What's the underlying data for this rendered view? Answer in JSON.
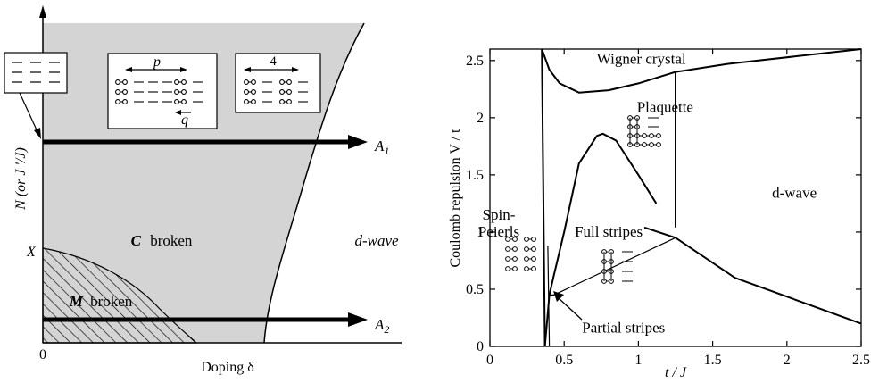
{
  "left_panel": {
    "xlabel": "Doping δ",
    "ylabel": "N (or J '/J)",
    "x_origin_label": "0",
    "x_marker_label": "X",
    "region_c_label": "broken",
    "region_c_symbol": "C",
    "region_m_label": "broken",
    "region_m_symbol": "M",
    "region_dwave_label": "d-wave",
    "arrow_a1_label": "A",
    "arrow_a1_sub": "1",
    "arrow_a2_label": "A",
    "arrow_a2_sub": "2",
    "inset_p_label": "p",
    "inset_q_label": "q",
    "inset_4_label": "4"
  },
  "chart_data": {
    "type": "line",
    "xlabel": "t / J",
    "ylabel": "Coulomb repulsion  V / t",
    "xlim": [
      0,
      2.5
    ],
    "ylim": [
      0,
      2.6
    ],
    "x_ticks": [
      0,
      0.5,
      1,
      1.5,
      2,
      2.5
    ],
    "x_tick_labels": [
      "0",
      "0.5",
      "1",
      "1.5",
      "2",
      "2.5"
    ],
    "y_ticks": [
      0,
      0.5,
      1,
      1.5,
      2,
      2.5
    ],
    "y_tick_labels": [
      "0",
      "0.5",
      "1",
      "1.5",
      "2",
      "2.5"
    ],
    "series": [
      {
        "x": [
          0.35,
          0.37
        ],
        "y": [
          2.6,
          0.0
        ]
      },
      {
        "x": [
          0.35,
          0.4,
          0.47,
          0.6,
          0.8,
          1.0,
          1.25
        ],
        "y": [
          2.6,
          2.42,
          2.3,
          2.22,
          2.24,
          2.3,
          2.4
        ]
      },
      {
        "x": [
          1.25,
          1.6,
          2.5
        ],
        "y": [
          2.4,
          2.47,
          2.6
        ]
      },
      {
        "x": [
          0.37,
          0.4,
          0.43,
          0.5,
          0.6,
          0.72,
          0.76,
          0.85,
          1.0,
          1.12
        ],
        "y": [
          0.0,
          0.45,
          0.62,
          1.0,
          1.6,
          1.84,
          1.86,
          1.8,
          1.5,
          1.25
        ]
      },
      {
        "x": [
          1.25,
          1.25
        ],
        "y": [
          2.4,
          1.04
        ]
      },
      {
        "x": [
          1.04,
          1.25
        ],
        "y": [
          1.04,
          0.95
        ]
      },
      {
        "x": [
          1.25,
          1.65,
          2.5
        ],
        "y": [
          0.95,
          0.6,
          0.2
        ]
      },
      {
        "x": [
          0.4,
          0.43,
          1.25
        ],
        "y": [
          0.45,
          0.45,
          0.95
        ]
      },
      {
        "x": [
          0.39,
          0.4
        ],
        "y": [
          0.88,
          0.0
        ]
      }
    ],
    "annotations": [
      {
        "text": "Wigner crystal",
        "x": 1.02,
        "y": 2.47
      },
      {
        "text": "Plaquette",
        "x": 1.18,
        "y": 2.05
      },
      {
        "text": "d-wave",
        "x": 2.05,
        "y": 1.3
      },
      {
        "text": "Spin-",
        "x": 0.06,
        "y": 1.11
      },
      {
        "text": "Peierls",
        "x": 0.06,
        "y": 0.96
      },
      {
        "text": "Full stripes",
        "x": 0.8,
        "y": 0.96
      },
      {
        "text": "Partial stripes",
        "x": 0.9,
        "y": 0.12
      }
    ]
  }
}
